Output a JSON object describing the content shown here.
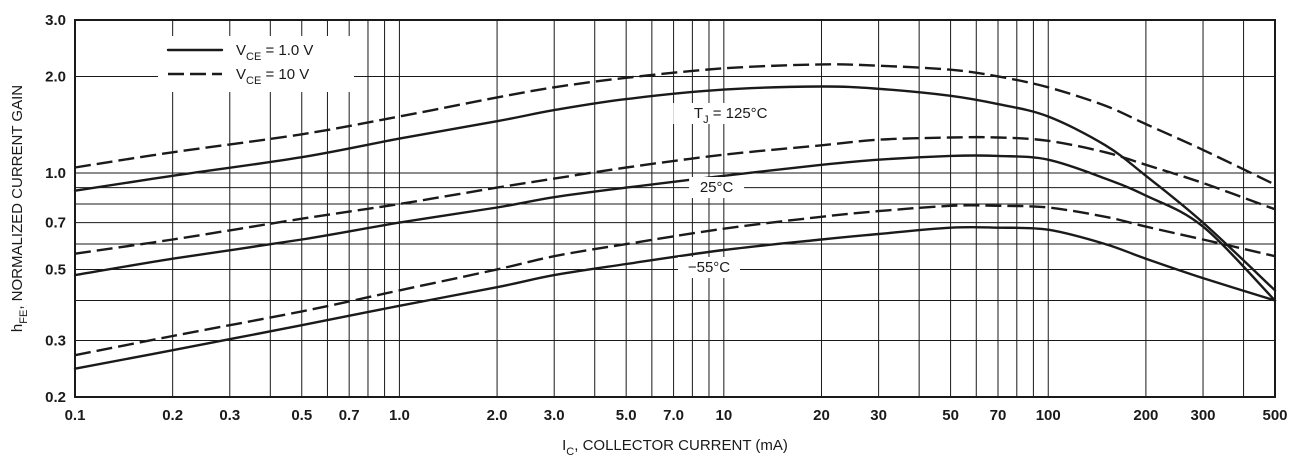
{
  "chart_data": {
    "type": "line",
    "x_scale": "log",
    "y_scale": "log",
    "xlim": [
      0.1,
      500
    ],
    "ylim": [
      0.2,
      3.0
    ],
    "grid": true,
    "legend_placement": "top-left",
    "xlabel": {
      "main": "I",
      "sub": "C",
      "rest": ", COLLECTOR CURRENT (mA)"
    },
    "ylabel": {
      "main": "h",
      "sub": "FE",
      "rest": ", NORMALIZED CURRENT GAIN"
    },
    "x_ticks": [
      {
        "value": 0.1,
        "label": "0.1"
      },
      {
        "value": 0.2,
        "label": "0.2"
      },
      {
        "value": 0.3,
        "label": "0.3"
      },
      {
        "value": 0.5,
        "label": "0.5"
      },
      {
        "value": 0.7,
        "label": "0.7"
      },
      {
        "value": 1,
        "label": "1.0"
      },
      {
        "value": 2,
        "label": "2.0"
      },
      {
        "value": 3,
        "label": "3.0"
      },
      {
        "value": 5,
        "label": "5.0"
      },
      {
        "value": 7,
        "label": "7.0"
      },
      {
        "value": 10,
        "label": "10"
      },
      {
        "value": 20,
        "label": "20"
      },
      {
        "value": 30,
        "label": "30"
      },
      {
        "value": 50,
        "label": "50"
      },
      {
        "value": 70,
        "label": "70"
      },
      {
        "value": 100,
        "label": "100"
      },
      {
        "value": 200,
        "label": "200"
      },
      {
        "value": 300,
        "label": "300"
      },
      {
        "value": 500,
        "label": "500"
      }
    ],
    "y_ticks": [
      {
        "value": 0.2,
        "label": "0.2"
      },
      {
        "value": 0.3,
        "label": "0.3"
      },
      {
        "value": 0.5,
        "label": "0.5"
      },
      {
        "value": 0.7,
        "label": "0.7"
      },
      {
        "value": 1.0,
        "label": "1.0"
      },
      {
        "value": 2.0,
        "label": "2.0"
      },
      {
        "value": 3.0,
        "label": "3.0"
      }
    ],
    "x_grid": [
      0.1,
      0.2,
      0.3,
      0.4,
      0.5,
      0.6,
      0.7,
      0.8,
      0.9,
      1,
      2,
      3,
      4,
      5,
      6,
      7,
      8,
      9,
      10,
      20,
      30,
      40,
      50,
      60,
      70,
      80,
      90,
      100,
      200,
      300,
      400,
      500
    ],
    "y_grid": [
      0.2,
      0.3,
      0.4,
      0.5,
      0.6,
      0.7,
      0.8,
      0.9,
      1.0,
      2.0,
      3.0
    ],
    "legend": [
      {
        "main": "V",
        "sub": "CE",
        "rest": " = 1.0 V",
        "style": "solid"
      },
      {
        "main": "V",
        "sub": "CE",
        "rest": " = 10 V",
        "style": "dashed"
      }
    ],
    "annotations": [
      {
        "main": "T",
        "sub": "J",
        "rest": " = 125°C"
      },
      {
        "main": "25°C",
        "sub": "",
        "rest": ""
      },
      {
        "main": "−55°C",
        "sub": "",
        "rest": ""
      }
    ],
    "series": [
      {
        "group": "T_J = 125°C",
        "vce": "1.0 V",
        "style": "solid",
        "x": [
          0.1,
          0.2,
          0.5,
          1,
          2,
          3,
          5,
          10,
          20,
          30,
          50,
          70,
          100,
          150,
          200,
          300,
          500
        ],
        "y": [
          0.88,
          0.98,
          1.12,
          1.28,
          1.45,
          1.57,
          1.7,
          1.82,
          1.86,
          1.83,
          1.74,
          1.64,
          1.5,
          1.22,
          0.98,
          0.7,
          0.43
        ]
      },
      {
        "group": "T_J = 125°C",
        "vce": "10 V",
        "style": "dashed",
        "x": [
          0.1,
          0.2,
          0.5,
          1,
          2,
          3,
          5,
          10,
          20,
          30,
          50,
          70,
          100,
          150,
          200,
          300,
          500
        ],
        "y": [
          1.04,
          1.16,
          1.32,
          1.5,
          1.72,
          1.85,
          1.98,
          2.12,
          2.18,
          2.16,
          2.1,
          2.0,
          1.85,
          1.62,
          1.42,
          1.18,
          0.92
        ]
      },
      {
        "group": "25°C",
        "vce": "1.0 V",
        "style": "solid",
        "x": [
          0.1,
          0.2,
          0.5,
          1,
          2,
          3,
          5,
          10,
          20,
          30,
          50,
          70,
          100,
          150,
          200,
          300,
          500
        ],
        "y": [
          0.48,
          0.54,
          0.62,
          0.7,
          0.78,
          0.84,
          0.9,
          0.98,
          1.06,
          1.1,
          1.13,
          1.13,
          1.1,
          0.96,
          0.85,
          0.68,
          0.4
        ]
      },
      {
        "group": "25°C",
        "vce": "10 V",
        "style": "dashed",
        "x": [
          0.1,
          0.2,
          0.5,
          1,
          2,
          3,
          5,
          10,
          20,
          30,
          50,
          70,
          100,
          150,
          200,
          300,
          500
        ],
        "y": [
          0.56,
          0.62,
          0.72,
          0.8,
          0.9,
          0.96,
          1.04,
          1.14,
          1.22,
          1.27,
          1.29,
          1.29,
          1.26,
          1.16,
          1.06,
          0.93,
          0.77
        ]
      },
      {
        "group": "−55°C",
        "vce": "1.0 V",
        "style": "solid",
        "x": [
          0.1,
          0.2,
          0.5,
          1,
          2,
          3,
          5,
          10,
          20,
          30,
          50,
          70,
          100,
          150,
          200,
          300,
          500
        ],
        "y": [
          0.245,
          0.28,
          0.335,
          0.385,
          0.44,
          0.48,
          0.52,
          0.575,
          0.62,
          0.645,
          0.675,
          0.675,
          0.665,
          0.6,
          0.54,
          0.47,
          0.4
        ]
      },
      {
        "group": "−55°C",
        "vce": "10 V",
        "style": "dashed",
        "x": [
          0.1,
          0.2,
          0.5,
          1,
          2,
          3,
          5,
          10,
          20,
          30,
          50,
          70,
          100,
          150,
          200,
          300,
          500
        ],
        "y": [
          0.27,
          0.31,
          0.37,
          0.43,
          0.5,
          0.55,
          0.6,
          0.67,
          0.73,
          0.76,
          0.79,
          0.79,
          0.78,
          0.73,
          0.68,
          0.62,
          0.55
        ]
      }
    ]
  }
}
